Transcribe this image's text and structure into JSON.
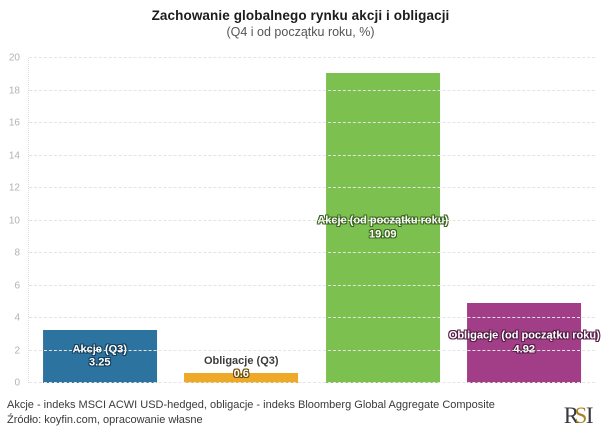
{
  "header": {
    "title": "Zachowanie globalnego rynku akcji i obligacji",
    "subtitle": "(Q4 i od początku roku, %)"
  },
  "chart_data": {
    "type": "bar",
    "title": "Zachowanie globalnego rynku akcji i obligacji",
    "subtitle": "(Q4 i od początku roku, %)",
    "xlabel": "",
    "ylabel": "",
    "ylim": [
      0,
      20
    ],
    "y_ticks": [
      0,
      2,
      4,
      6,
      8,
      10,
      12,
      14,
      16,
      18,
      20
    ],
    "grid": "horizontal-dashed",
    "legend": "none",
    "categories": [
      "Akcje (Q3)",
      "Obligacje (Q3)",
      "Akcje (od początku roku)",
      "Obligacje (od początku roku)"
    ],
    "values": [
      3.25,
      0.6,
      19.09,
      4.92
    ],
    "bars": [
      {
        "label": "Akcje (Q3)",
        "value": 3.25,
        "value_label": "3.25",
        "color": "#2d739f",
        "outline_color": "#153f5c",
        "label_position": "inside-center"
      },
      {
        "label": "Obligacje (Q3)",
        "value": 0.6,
        "value_label": "0.6",
        "color": "#efa928",
        "outline_color": "#6e4e0a",
        "label_position": "name-above"
      },
      {
        "label": "Akcje (od początku roku)",
        "value": 19.09,
        "value_label": "19.09",
        "color": "#7cc14f",
        "outline_color": "#3d6620",
        "label_position": "inside-center"
      },
      {
        "label": "Obligacje (od początku roku)",
        "value": 4.92,
        "value_label": "4.92",
        "color": "#a23d87",
        "outline_color": "#561f47",
        "label_position": "inside-center"
      }
    ]
  },
  "footer": {
    "line1": "Akcje - indeks MSCI ACWI USD-hedged, obligacje - indeks Bloomberg Global Aggregate Composite",
    "line2": "Źródło: koyfin.com, opracowanie własne"
  },
  "logo": {
    "text": "RSI",
    "letter_r": "R",
    "letter_s": "S",
    "letter_i": "I",
    "dark_color": "#38373d",
    "gold_color": "#ab8326"
  }
}
